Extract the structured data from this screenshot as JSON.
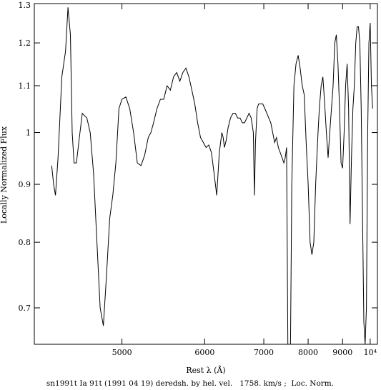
{
  "chart_data": {
    "type": "line",
    "xlabel": "Rest λ (Å)",
    "ylabel": "Locally Normalized Flux",
    "caption": "sn1991t Ia 91t (1991 04 19) deredsh. by hel. vel.   1758. km/s ;  Loc. Norm.",
    "x_scale": "reciprocal",
    "y_scale": "log",
    "xlim": [
      4250,
      10300
    ],
    "ylim": [
      0.65,
      1.3
    ],
    "x_ticks": [
      {
        "value": 5000,
        "label": "5000"
      },
      {
        "value": 6000,
        "label": "6000"
      },
      {
        "value": 7000,
        "label": "7000"
      },
      {
        "value": 8000,
        "label": "8000"
      },
      {
        "value": 9000,
        "label": "9000"
      },
      {
        "value": 10000,
        "label": "10⁴"
      }
    ],
    "y_ticks": [
      {
        "value": 0.7,
        "label": "0.7"
      },
      {
        "value": 0.8,
        "label": "0.8"
      },
      {
        "value": 0.9,
        "label": "0.9"
      },
      {
        "value": 1.0,
        "label": "1"
      },
      {
        "value": 1.1,
        "label": "1.1"
      },
      {
        "value": 1.2,
        "label": "1.2"
      },
      {
        "value": 1.3,
        "label": "1.3"
      }
    ],
    "grid": false,
    "legend": "none",
    "line_color": "#000000",
    "series": [
      {
        "x": [
          4380,
          4395,
          4410,
          4430,
          4460,
          4490,
          4510,
          4530,
          4545,
          4560,
          4580,
          4600,
          4630,
          4670,
          4700,
          4730,
          4760,
          4790,
          4820,
          4850,
          4880,
          4910,
          4940,
          4970,
          5000,
          5040,
          5080,
          5120,
          5160,
          5200,
          5240,
          5280,
          5310,
          5340,
          5380,
          5420,
          5460,
          5500,
          5540,
          5580,
          5620,
          5660,
          5700,
          5740,
          5780,
          5820,
          5860,
          5900,
          5940,
          5980,
          6020,
          6060,
          6100,
          6140,
          6180,
          6220,
          6260,
          6280,
          6300,
          6330,
          6360,
          6400,
          6440,
          6480,
          6520,
          6560,
          6600,
          6640,
          6680,
          6720,
          6760,
          6800,
          6820,
          6840,
          6870,
          6900,
          6940,
          6980,
          7020,
          7060,
          7100,
          7140,
          7180,
          7220,
          7260,
          7300,
          7340,
          7380,
          7420,
          7450,
          7480,
          7510,
          7540,
          7570,
          7600,
          7650,
          7700,
          7750,
          7800,
          7850,
          7900,
          7950,
          8000,
          8050,
          8100,
          8150,
          8200,
          8250,
          8300,
          8350,
          8400,
          8450,
          8500,
          8550,
          8600,
          8650,
          8700,
          8750,
          8800,
          8850,
          8900,
          8950,
          9000,
          9050,
          9100,
          9150,
          9200,
          9250,
          9300,
          9350,
          9400,
          9450,
          9500,
          9550,
          9600,
          9650,
          9700,
          9750,
          9800,
          9850,
          9900,
          9950,
          10000,
          10050,
          10100
        ],
        "y": [
          0.935,
          0.9,
          0.88,
          0.95,
          1.12,
          1.18,
          1.29,
          1.22,
          1.0,
          0.94,
          0.94,
          0.98,
          1.04,
          1.03,
          1.0,
          0.92,
          0.8,
          0.7,
          0.675,
          0.75,
          0.84,
          0.88,
          0.94,
          1.05,
          1.07,
          1.075,
          1.05,
          1.0,
          0.94,
          0.935,
          0.955,
          0.99,
          1.0,
          1.02,
          1.05,
          1.07,
          1.07,
          1.1,
          1.09,
          1.12,
          1.13,
          1.11,
          1.13,
          1.14,
          1.12,
          1.09,
          1.06,
          1.02,
          0.99,
          0.98,
          0.97,
          0.975,
          0.96,
          0.92,
          0.88,
          0.96,
          1.0,
          0.99,
          0.97,
          0.985,
          1.01,
          1.03,
          1.04,
          1.04,
          1.03,
          1.03,
          1.02,
          1.02,
          1.03,
          1.04,
          1.03,
          1.0,
          0.88,
          0.98,
          1.05,
          1.06,
          1.06,
          1.06,
          1.05,
          1.04,
          1.03,
          1.02,
          1.0,
          0.98,
          0.99,
          0.97,
          0.96,
          0.95,
          0.94,
          0.95,
          0.97,
          0.64,
          0.64,
          0.64,
          0.9,
          1.1,
          1.15,
          1.17,
          1.14,
          1.1,
          1.08,
          0.98,
          0.9,
          0.8,
          0.78,
          0.8,
          0.9,
          0.98,
          1.05,
          1.1,
          1.12,
          1.06,
          1.0,
          0.95,
          1.0,
          1.05,
          1.1,
          1.2,
          1.22,
          1.15,
          1.05,
          0.94,
          0.93,
          1.0,
          1.1,
          1.15,
          1.05,
          0.83,
          0.95,
          1.05,
          1.1,
          1.2,
          1.24,
          1.24,
          1.2,
          1.05,
          0.85,
          0.68,
          0.64,
          0.7,
          1.0,
          1.2,
          1.25,
          1.1,
          1.05
        ]
      }
    ]
  }
}
